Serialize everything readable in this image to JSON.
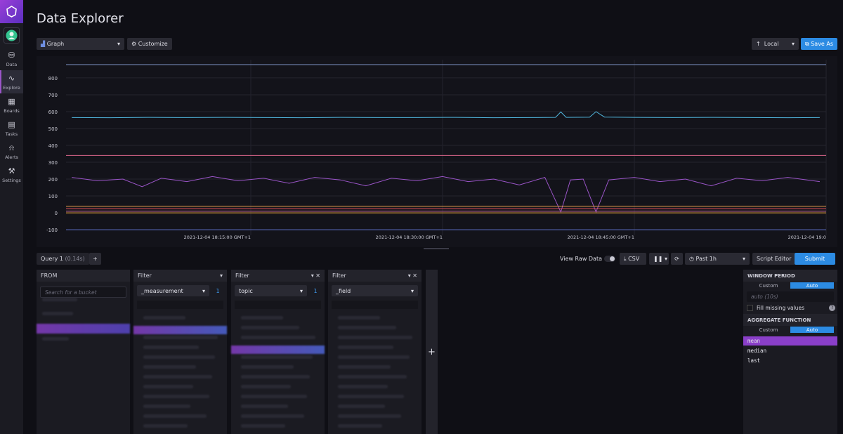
{
  "sidebar": {
    "items": [
      "Data",
      "Explore",
      "Boards",
      "Tasks",
      "Alerts",
      "Settings"
    ]
  },
  "header": {
    "title": "Data Explorer"
  },
  "toolbar": {
    "view_type": "Graph",
    "customize": "Customize",
    "timezone": "Local",
    "save_as": "Save As"
  },
  "chart_data": {
    "type": "line",
    "xlim": [
      "2021-12-04 18:00:33",
      "2021-12-04 19:00:00"
    ],
    "xticks": [
      {
        "value": "2021-12-04 18:15:00",
        "label": "2021-12-04 18:15:00 GMT+1"
      },
      {
        "value": "2021-12-04 18:30:00",
        "label": "2021-12-04 18:30:00 GMT+1"
      },
      {
        "value": "2021-12-04 18:45:00",
        "label": "2021-12-04 18:45:00 GMT+1"
      },
      {
        "value": "2021-12-04 19:00:00",
        "label": "2021-12-04 19:0"
      }
    ],
    "ylim": [
      -133,
      908
    ],
    "yticks": [
      -100,
      0,
      100,
      200,
      300,
      400,
      500,
      600,
      700,
      800
    ],
    "grid": true,
    "series": [
      {
        "color": "#7d93c4",
        "x": [
          "2021-12-04 18:00:33",
          "2021-12-04 19:00:00"
        ],
        "values": [
          879,
          879
        ]
      },
      {
        "color": "#4fb3d9",
        "x": [
          "2021-12-04 18:01:00",
          "2021-12-04 18:04:00",
          "2021-12-04 18:07:00",
          "2021-12-04 18:10:00",
          "2021-12-04 18:13:00",
          "2021-12-04 18:16:00",
          "2021-12-04 18:19:00",
          "2021-12-04 18:22:00",
          "2021-12-04 18:25:00",
          "2021-12-04 18:28:00",
          "2021-12-04 18:31:00",
          "2021-12-04 18:34:00",
          "2021-12-04 18:37:00",
          "2021-12-04 18:38:50",
          "2021-12-04 18:39:15",
          "2021-12-04 18:39:40",
          "2021-12-04 18:41:30",
          "2021-12-04 18:42:00",
          "2021-12-04 18:42:40",
          "2021-12-04 18:45:00",
          "2021-12-04 18:48:00",
          "2021-12-04 18:51:00",
          "2021-12-04 18:54:00",
          "2021-12-04 18:57:00",
          "2021-12-04 18:59:30"
        ],
        "values": [
          565,
          564,
          566,
          565,
          566,
          565,
          564,
          566,
          565,
          565,
          566,
          564,
          565,
          566,
          598,
          566,
          567,
          600,
          568,
          566,
          565,
          566,
          565,
          564,
          565
        ]
      },
      {
        "color": "#d9658a",
        "x": [
          "2021-12-04 18:00:33",
          "2021-12-04 19:00:00"
        ],
        "values": [
          340,
          340
        ]
      },
      {
        "color": "#9b55c9",
        "x": [
          "2021-12-04 18:01:00",
          "2021-12-04 18:03:00",
          "2021-12-04 18:05:00",
          "2021-12-04 18:06:30",
          "2021-12-04 18:08:00",
          "2021-12-04 18:10:00",
          "2021-12-04 18:12:00",
          "2021-12-04 18:14:00",
          "2021-12-04 18:16:00",
          "2021-12-04 18:18:00",
          "2021-12-04 18:20:00",
          "2021-12-04 18:22:00",
          "2021-12-04 18:24:00",
          "2021-12-04 18:26:00",
          "2021-12-04 18:28:00",
          "2021-12-04 18:30:00",
          "2021-12-04 18:32:00",
          "2021-12-04 18:34:00",
          "2021-12-04 18:36:00",
          "2021-12-04 18:38:00",
          "2021-12-04 18:39:15",
          "2021-12-04 18:40:00",
          "2021-12-04 18:41:00",
          "2021-12-04 18:42:00",
          "2021-12-04 18:43:00",
          "2021-12-04 18:45:00",
          "2021-12-04 18:47:00",
          "2021-12-04 18:49:00",
          "2021-12-04 18:51:00",
          "2021-12-04 18:53:00",
          "2021-12-04 18:55:00",
          "2021-12-04 18:57:00",
          "2021-12-04 18:59:30"
        ],
        "values": [
          210,
          190,
          200,
          155,
          205,
          185,
          215,
          190,
          205,
          175,
          210,
          195,
          160,
          205,
          190,
          215,
          185,
          200,
          165,
          210,
          5,
          195,
          200,
          5,
          195,
          210,
          185,
          200,
          160,
          205,
          190,
          210,
          185
        ]
      },
      {
        "color": "#f0a24e",
        "x": [
          "2021-12-04 18:00:33",
          "2021-12-04 19:00:00"
        ],
        "values": [
          40,
          40
        ]
      },
      {
        "color": "#e0505e",
        "x": [
          "2021-12-04 18:00:33",
          "2021-12-04 19:00:00"
        ],
        "values": [
          25,
          25
        ]
      },
      {
        "color": "#d46fa0",
        "x": [
          "2021-12-04 18:00:33",
          "2021-12-04 19:00:00"
        ],
        "values": [
          10,
          10
        ]
      },
      {
        "color": "#e8a23c",
        "x": [
          "2021-12-04 18:00:33",
          "2021-12-04 19:00:00"
        ],
        "values": [
          0,
          0
        ]
      },
      {
        "color": "#5b6cc4",
        "x": [
          "2021-12-04 18:00:33",
          "2021-12-04 19:00:00"
        ],
        "values": [
          -100,
          -100
        ]
      }
    ]
  },
  "query_bar": {
    "tab": "Query 1",
    "duration": "(0.14s)",
    "add": "+",
    "view_raw": "View Raw Data",
    "csv": "CSV",
    "time_range": "Past 1h",
    "script_editor": "Script Editor",
    "submit": "Submit"
  },
  "builder": {
    "from": {
      "title": "FROM",
      "search": "Search for a bucket"
    },
    "filters": [
      {
        "title": "Filter",
        "key": "_measurement",
        "count": 1
      },
      {
        "title": "Filter",
        "key": "topic",
        "count": 1
      },
      {
        "title": "Filter",
        "key": "_field"
      }
    ],
    "add": "+",
    "window_period": {
      "title": "WINDOW PERIOD",
      "custom": "Custom",
      "auto": "Auto",
      "placeholder": "auto (10s)",
      "fill_missing": "Fill missing values"
    },
    "aggregate": {
      "title": "AGGREGATE FUNCTION",
      "custom": "Custom",
      "auto": "Auto",
      "functions": [
        "mean",
        "median",
        "last"
      ]
    }
  }
}
